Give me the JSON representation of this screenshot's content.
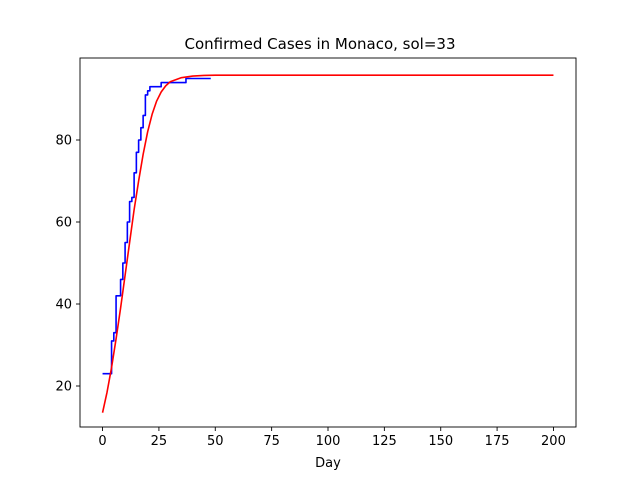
{
  "chart_data": {
    "type": "line",
    "title": "Confirmed Cases in Monaco, sol=33",
    "xlabel": "Day",
    "ylabel": "",
    "xlim": [
      -10,
      210
    ],
    "ylim": [
      10,
      100
    ],
    "xticks": [
      0,
      25,
      50,
      75,
      100,
      125,
      150,
      175,
      200
    ],
    "yticks": [
      20,
      40,
      60,
      80
    ],
    "grid": false,
    "series": [
      {
        "color": "#0000ff",
        "step": true,
        "x": [
          0,
          1,
          2,
          3,
          4,
          5,
          6,
          7,
          8,
          9,
          10,
          11,
          12,
          13,
          14,
          15,
          16,
          17,
          18,
          19,
          20,
          21,
          22,
          23,
          24,
          25,
          26,
          27,
          28,
          29,
          30,
          31,
          32,
          33,
          34,
          35,
          36,
          37,
          38,
          39,
          40,
          41,
          42,
          43,
          44,
          45,
          46,
          47,
          48
        ],
        "y": [
          23,
          23,
          23,
          23,
          31,
          33,
          42,
          42,
          46,
          50,
          55,
          60,
          65,
          66,
          72,
          77,
          80,
          83,
          86,
          91,
          92,
          93,
          93,
          93,
          93,
          93,
          94,
          94,
          94,
          94,
          94,
          94,
          94,
          94,
          94,
          94,
          94,
          95,
          95,
          95,
          95,
          95,
          95,
          95,
          95,
          95,
          95,
          95,
          95
        ]
      },
      {
        "color": "#ff0000",
        "step": false,
        "x": [
          0,
          2,
          4,
          6,
          8,
          10,
          12,
          14,
          16,
          18,
          20,
          22,
          24,
          26,
          28,
          30,
          35,
          40,
          45,
          50,
          60,
          80,
          100,
          125,
          150,
          175,
          200
        ],
        "y": [
          13.5,
          18.5,
          24.5,
          31.5,
          39,
          47,
          55,
          63,
          70,
          76.5,
          82,
          86.3,
          89.5,
          91.7,
          93.2,
          94.2,
          95.2,
          95.6,
          95.75,
          95.8,
          95.8,
          95.8,
          95.8,
          95.8,
          95.8,
          95.8,
          95.8
        ]
      }
    ]
  }
}
